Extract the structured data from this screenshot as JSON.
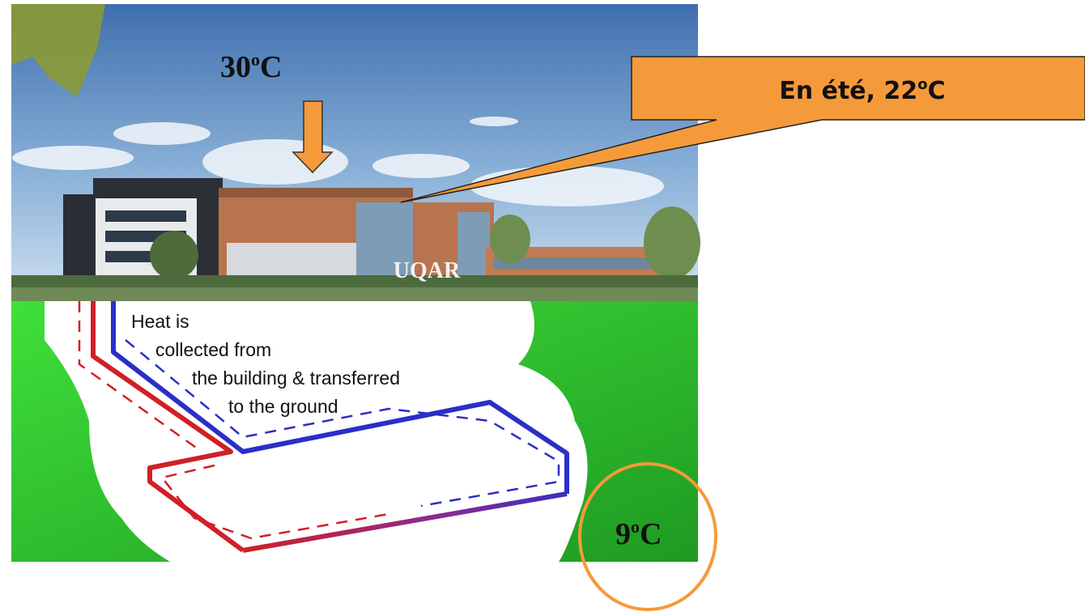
{
  "top_temperature": {
    "number": "30",
    "degree": "o",
    "unit": "C"
  },
  "callout": {
    "text": "En été, 22",
    "degree": "o",
    "unit": "C"
  },
  "ground_temperature": {
    "number": "9",
    "degree": "o",
    "unit": "C"
  },
  "building_sign": "UQAR",
  "diagram_text": [
    "Heat is",
    "collected from",
    "the building & transferred",
    "to the ground"
  ]
}
